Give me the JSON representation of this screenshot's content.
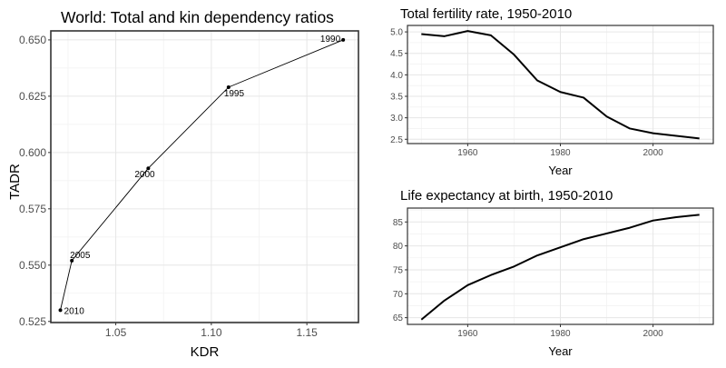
{
  "chart_data": [
    {
      "type": "scatter",
      "title": "World: Total and kin dependency ratios",
      "xlabel": "KDR",
      "ylabel": "TADR",
      "xlim": [
        1.016,
        1.177
      ],
      "ylim": [
        0.5245,
        0.654
      ],
      "xticks": [
        {
          "v": 1.05,
          "label": "1.05"
        },
        {
          "v": 1.1,
          "label": "1.10"
        },
        {
          "v": 1.15,
          "label": "1.15"
        }
      ],
      "yticks": [
        {
          "v": 0.525,
          "label": "0.525"
        },
        {
          "v": 0.55,
          "label": "0.550"
        },
        {
          "v": 0.575,
          "label": "0.575"
        },
        {
          "v": 0.6,
          "label": "0.600"
        },
        {
          "v": 0.625,
          "label": "0.625"
        },
        {
          "v": 0.65,
          "label": "0.650"
        }
      ],
      "points": [
        {
          "year": "1990",
          "x": 1.169,
          "y": 0.65
        },
        {
          "year": "1995",
          "x": 1.109,
          "y": 0.629
        },
        {
          "year": "2000",
          "x": 1.067,
          "y": 0.593
        },
        {
          "year": "2005",
          "x": 1.027,
          "y": 0.552
        },
        {
          "year": "2010",
          "x": 1.021,
          "y": 0.53
        }
      ]
    },
    {
      "type": "line",
      "title": "Total fertility rate, 1950-2010",
      "xlabel": "Year",
      "ylabel": "",
      "xlim": [
        1947,
        2013
      ],
      "ylim": [
        2.4,
        5.15
      ],
      "xticks": [
        {
          "v": 1960,
          "label": "1960"
        },
        {
          "v": 1980,
          "label": "1980"
        },
        {
          "v": 2000,
          "label": "2000"
        }
      ],
      "yticks": [
        {
          "v": 2.5,
          "label": "2.5"
        },
        {
          "v": 3.0,
          "label": "3.0"
        },
        {
          "v": 3.5,
          "label": "3.5"
        },
        {
          "v": 4.0,
          "label": "4.0"
        },
        {
          "v": 4.5,
          "label": "4.5"
        },
        {
          "v": 5.0,
          "label": "5.0"
        }
      ],
      "x": [
        1950,
        1955,
        1960,
        1965,
        1970,
        1975,
        1980,
        1985,
        1990,
        1995,
        2000,
        2005,
        2010
      ],
      "y": [
        4.95,
        4.9,
        5.02,
        4.92,
        4.47,
        3.87,
        3.6,
        3.47,
        3.03,
        2.75,
        2.64,
        2.58,
        2.52
      ]
    },
    {
      "type": "line",
      "title": "Life expectancy at birth, 1950-2010",
      "xlabel": "Year",
      "ylabel": "",
      "xlim": [
        1947,
        2013
      ],
      "ylim": [
        63.6,
        87.9
      ],
      "xticks": [
        {
          "v": 1960,
          "label": "1960"
        },
        {
          "v": 1980,
          "label": "1980"
        },
        {
          "v": 2000,
          "label": "2000"
        }
      ],
      "yticks": [
        {
          "v": 65,
          "label": "65"
        },
        {
          "v": 70,
          "label": "70"
        },
        {
          "v": 75,
          "label": "75"
        },
        {
          "v": 80,
          "label": "80"
        },
        {
          "v": 85,
          "label": "85"
        }
      ],
      "x": [
        1950,
        1955,
        1960,
        1965,
        1970,
        1975,
        1980,
        1985,
        1990,
        1995,
        2000,
        2005,
        2010
      ],
      "y": [
        64.6,
        68.6,
        71.8,
        73.9,
        75.7,
        78.0,
        79.7,
        81.4,
        82.6,
        83.8,
        85.3,
        86.0,
        86.5
      ]
    }
  ]
}
